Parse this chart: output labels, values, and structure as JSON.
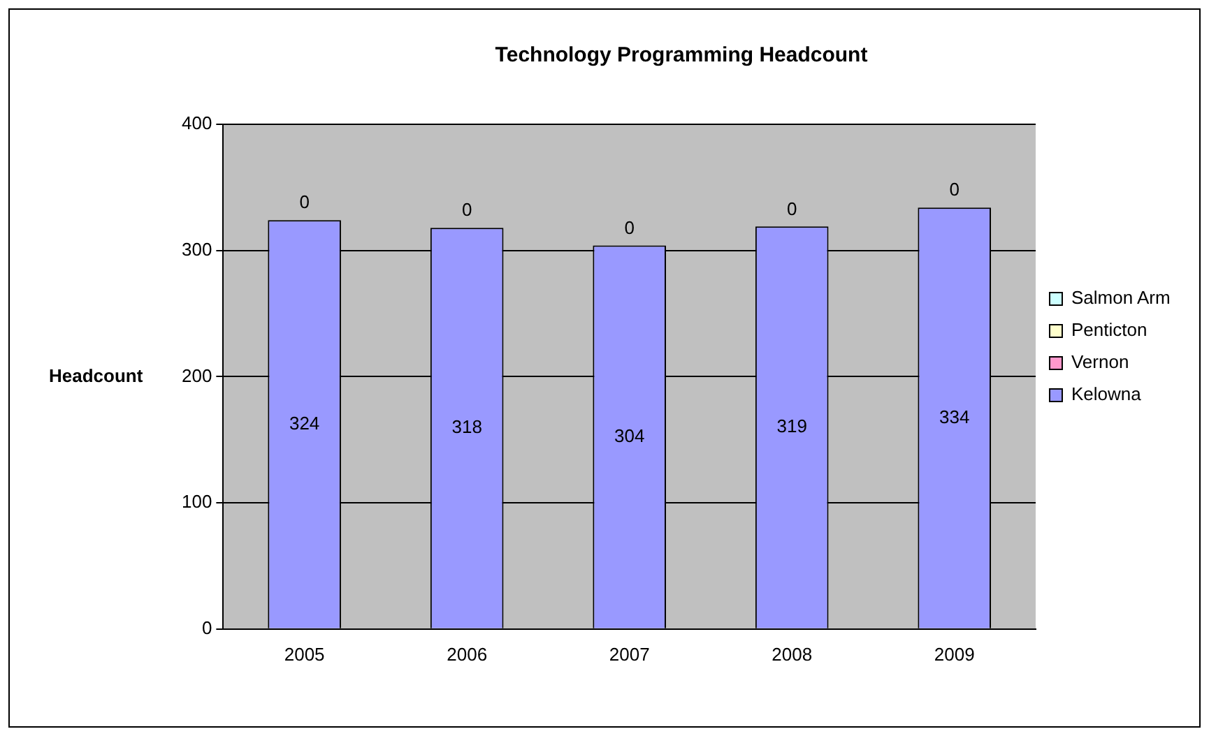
{
  "chart_data": {
    "type": "bar",
    "title": "Technology Programming Headcount",
    "ylabel": "Headcount",
    "categories": [
      "2005",
      "2006",
      "2007",
      "2008",
      "2009"
    ],
    "series": [
      {
        "name": "Kelowna",
        "color": "#9999ff",
        "values": [
          324,
          318,
          304,
          319,
          334
        ],
        "value_labels": [
          "324",
          "318",
          "304",
          "319",
          "334"
        ]
      },
      {
        "name": "Vernon",
        "color": "#ff99cc",
        "values": [
          0,
          0,
          0,
          0,
          0
        ]
      },
      {
        "name": "Penticton",
        "color": "#ffffcc",
        "values": [
          0,
          0,
          0,
          0,
          0
        ]
      },
      {
        "name": "Salmon Arm",
        "color": "#ccffff",
        "values": [
          0,
          0,
          0,
          0,
          0
        ],
        "value_labels": [
          "0",
          "0",
          "0",
          "0",
          "0"
        ]
      }
    ],
    "stacked": true,
    "ylim": [
      0,
      400
    ],
    "yticks": [
      0,
      100,
      200,
      300,
      400
    ],
    "grid": "y",
    "legend": "right"
  }
}
